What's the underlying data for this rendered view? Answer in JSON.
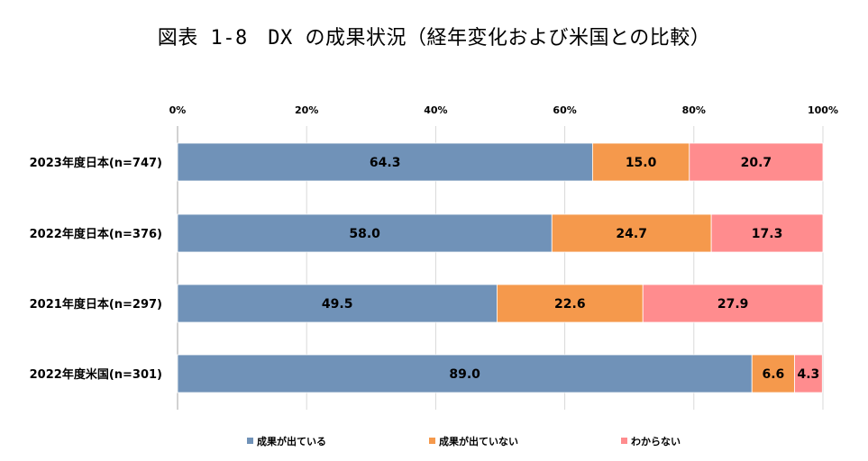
{
  "title": "図表 1-8　DX の成果状況（経年変化および米国との比較）",
  "chart_data": {
    "type": "bar",
    "orientation": "horizontal",
    "stacked": true,
    "percent": true,
    "title": "図表 1-8　DX の成果状況（経年変化および米国との比較）",
    "xlim": [
      0,
      100
    ],
    "x_ticks": [
      "0%",
      "20%",
      "40%",
      "60%",
      "80%",
      "100%"
    ],
    "grid": "vertical",
    "legend_position": "bottom",
    "categories": [
      "2023年度日本(n=747)",
      "2022年度日本(n=376)",
      "2021年度日本(n=297)",
      "2022年度米国(n=301)"
    ],
    "series": [
      {
        "name": "成果が出ている",
        "color": "#7092b8",
        "values": [
          64.3,
          58.0,
          49.5,
          89.0
        ],
        "labels": [
          "64.3",
          "58.0",
          "49.5",
          "89.0"
        ]
      },
      {
        "name": "成果が出ていない",
        "color": "#f5994c",
        "values": [
          15.0,
          24.7,
          22.6,
          6.6
        ],
        "labels": [
          "15.0",
          "24.7",
          "22.6",
          "6.6"
        ]
      },
      {
        "name": "わからない",
        "color": "#ff8c8e",
        "values": [
          20.7,
          17.3,
          27.9,
          4.3
        ],
        "labels": [
          "20.7",
          "17.3",
          "27.9",
          "4.3"
        ]
      }
    ]
  }
}
